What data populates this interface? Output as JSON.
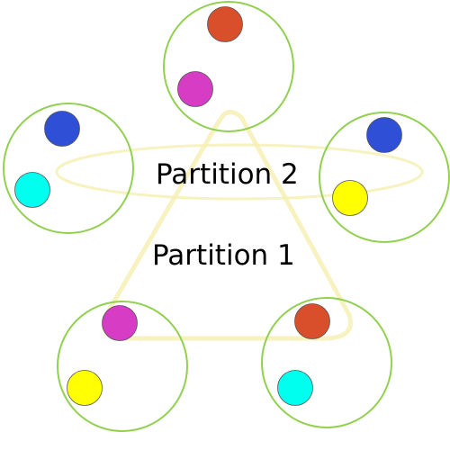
{
  "labels": {
    "partition_1": "Partition 1",
    "partition_2": "Partition 2"
  },
  "colors": {
    "group_outline": "#92d050",
    "partition_outline": "#f5efb0",
    "ball_outline": "#555555",
    "red": "#d94f2b",
    "magenta": "#d63cc4",
    "blue": "#2f4fd6",
    "cyan": "#00ffee",
    "yellow": "#ffff00"
  },
  "groups": [
    {
      "name": "group-top",
      "balls": [
        "red",
        "magenta"
      ]
    },
    {
      "name": "group-left",
      "balls": [
        "blue",
        "cyan"
      ]
    },
    {
      "name": "group-right",
      "balls": [
        "blue",
        "yellow"
      ]
    },
    {
      "name": "group-bottom-left",
      "balls": [
        "magenta",
        "yellow"
      ]
    },
    {
      "name": "group-bottom-right",
      "balls": [
        "red",
        "cyan"
      ]
    }
  ]
}
